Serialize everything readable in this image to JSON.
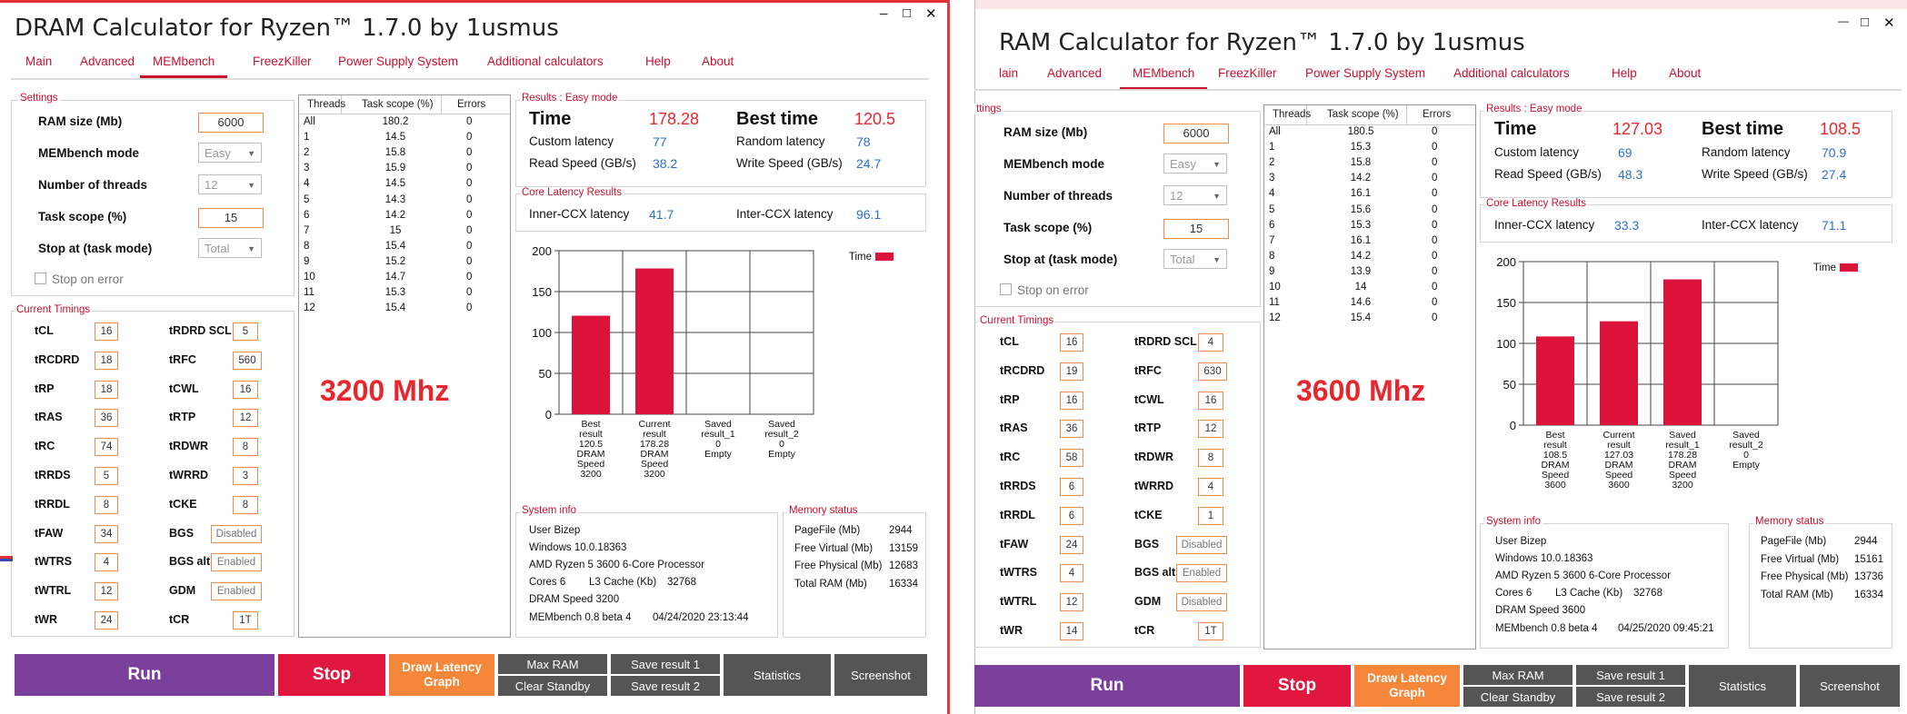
{
  "windows": [
    {
      "title": "DRAM Calculator for Ryzen™ 1.7.0 by 1usmus",
      "controls": {
        "minimize": "_",
        "maximize": "□",
        "close": "✕"
      },
      "tabs": [
        "Main",
        "Advanced",
        "MEMbench",
        "FreezKiller",
        "Power Supply System",
        "Additional calculators",
        "Help",
        "About"
      ],
      "active_tab": "MEMbench",
      "settings": {
        "label": "Settings",
        "ram_size_label": "RAM size (Mb)",
        "ram_size": "6000",
        "mode_label": "MEMbench mode",
        "mode": "Easy",
        "threads_label": "Number of threads",
        "threads": "12",
        "scope_label": "Task scope (%)",
        "scope": "15",
        "stop_label": "Stop at (task mode)",
        "stop": "Total",
        "stop_on_error": "Stop on error"
      },
      "timings_label": "Current Timings",
      "timings_left": [
        [
          "tCL",
          "16"
        ],
        [
          "tRCDRD",
          "18"
        ],
        [
          "tRP",
          "18"
        ],
        [
          "tRAS",
          "36"
        ],
        [
          "tRC",
          "74"
        ],
        [
          "tRRDS",
          "5"
        ],
        [
          "tRRDL",
          "8"
        ],
        [
          "tFAW",
          "34"
        ],
        [
          "tWTRS",
          "4"
        ],
        [
          "tWTRL",
          "12"
        ],
        [
          "tWR",
          "24"
        ]
      ],
      "timings_right": [
        [
          "tRDRD SCL",
          "5"
        ],
        [
          "tRFC",
          "560"
        ],
        [
          "tCWL",
          "16"
        ],
        [
          "tRTP",
          "12"
        ],
        [
          "tRDWR",
          "8"
        ],
        [
          "tWRRD",
          "3"
        ],
        [
          "tCKE",
          "8"
        ],
        [
          "BGS",
          "Disabled"
        ],
        [
          "BGS alt",
          "Enabled"
        ],
        [
          "GDM",
          "Enabled"
        ],
        [
          "tCR",
          "1T"
        ]
      ],
      "thread_table": {
        "headers": [
          "Threads",
          "Task scope (%)",
          "Errors"
        ],
        "rows": [
          [
            "All",
            "180.2",
            "0"
          ],
          [
            "1",
            "14.5",
            "0"
          ],
          [
            "2",
            "15.8",
            "0"
          ],
          [
            "3",
            "15.9",
            "0"
          ],
          [
            "4",
            "14.5",
            "0"
          ],
          [
            "5",
            "14.3",
            "0"
          ],
          [
            "6",
            "14.2",
            "0"
          ],
          [
            "7",
            "15",
            "0"
          ],
          [
            "8",
            "15.4",
            "0"
          ],
          [
            "9",
            "15.2",
            "0"
          ],
          [
            "10",
            "14.7",
            "0"
          ],
          [
            "11",
            "15.3",
            "0"
          ],
          [
            "12",
            "15.4",
            "0"
          ]
        ]
      },
      "freq_label": "3200 Mhz",
      "results": {
        "label": "Results : Easy mode",
        "time_label": "Time",
        "time": "178.28",
        "best_label": "Best time",
        "best": "120.5",
        "custom_label": "Custom latency",
        "custom": "77",
        "random_label": "Random latency",
        "random": "78",
        "read_label": "Read Speed (GB/s)",
        "read": "38.2",
        "write_label": "Write Speed (GB/s)",
        "write": "24.7"
      },
      "core_latency": {
        "label": "Core Latency Results",
        "inner_label": "Inner-CCX latency",
        "inner": "41.7",
        "inter_label": "Inter-CCX latency",
        "inter": "96.1"
      },
      "chart_data": {
        "type": "bar",
        "categories": [
          "Best result 120.5 DRAM Speed 3200",
          "Current result 178.28 DRAM Speed 3200",
          "Saved result_1 0 Empty",
          "Saved result_2 0 Empty"
        ],
        "category_lines": [
          [
            "Best",
            "result",
            "120.5",
            "DRAM",
            "Speed",
            "3200"
          ],
          [
            "Current",
            "result",
            "178.28",
            "DRAM",
            "Speed",
            "3200"
          ],
          [
            "Saved",
            "result_1",
            "0",
            "Empty"
          ],
          [
            "Saved",
            "result_2",
            "0",
            "Empty"
          ]
        ],
        "values": [
          120.5,
          178.28,
          0,
          0
        ],
        "series": [
          {
            "name": "Time",
            "values": [
              120.5,
              178.28,
              0,
              0
            ]
          }
        ],
        "ylim": [
          0,
          200
        ],
        "yticks": [
          "0",
          "50",
          "100",
          "150",
          "200"
        ],
        "legend_position": "top-right",
        "bar_color": "#dc143c",
        "grid": true
      },
      "system_info": {
        "label": "System info",
        "user": "User Bizep",
        "os": "Windows 10.0.18363",
        "cpu": "AMD Ryzen 5 3600 6-Core Processor",
        "cores": "Cores 6",
        "l3_label": "L3 Cache (Kb)",
        "l3": "32768",
        "dram": "DRAM Speed 3200",
        "membench": "MEMbench 0.8 beta 4",
        "date": "04/24/2020 23:13:44"
      },
      "memory_status": {
        "label": "Memory status",
        "rows": [
          [
            "PageFile (Mb)",
            "2944"
          ],
          [
            "Free Virtual (Mb)",
            "13159"
          ],
          [
            "Free Physical (Mb)",
            "12683"
          ],
          [
            "Total RAM (Mb)",
            "16334"
          ]
        ]
      },
      "buttons": {
        "run": "Run",
        "stop": "Stop",
        "draw": "Draw Latency Graph",
        "max_ram": "Max RAM",
        "clear_standby": "Clear Standby",
        "save1": "Save result 1",
        "save2": "Save result 2",
        "statistics": "Statistics",
        "screenshot": "Screenshot"
      }
    },
    {
      "title": "RAM Calculator for Ryzen™ 1.7.0 by 1usmus",
      "controls": {
        "minimize": "—",
        "maximize": "□",
        "close": "✕"
      },
      "tabs": [
        "lain",
        "Advanced",
        "MEMbench",
        "FreezKiller",
        "Power Supply System",
        "Additional calculators",
        "Help",
        "About"
      ],
      "active_tab": "MEMbench",
      "settings": {
        "label": "ttings",
        "ram_size_label": "RAM size (Mb)",
        "ram_size": "6000",
        "mode_label": "MEMbench mode",
        "mode": "Easy",
        "threads_label": "Number of threads",
        "threads": "12",
        "scope_label": "Task scope (%)",
        "scope": "15",
        "stop_label": "Stop at (task mode)",
        "stop": "Total",
        "stop_on_error": "Stop on error"
      },
      "timings_label": "Current Timings",
      "timings_left": [
        [
          "tCL",
          "16"
        ],
        [
          "tRCDRD",
          "19"
        ],
        [
          "tRP",
          "16"
        ],
        [
          "tRAS",
          "36"
        ],
        [
          "tRC",
          "58"
        ],
        [
          "tRRDS",
          "6"
        ],
        [
          "tRRDL",
          "6"
        ],
        [
          "tFAW",
          "24"
        ],
        [
          "tWTRS",
          "4"
        ],
        [
          "tWTRL",
          "12"
        ],
        [
          "tWR",
          "14"
        ]
      ],
      "timings_right": [
        [
          "tRDRD SCL",
          "4"
        ],
        [
          "tRFC",
          "630"
        ],
        [
          "tCWL",
          "16"
        ],
        [
          "tRTP",
          "12"
        ],
        [
          "tRDWR",
          "8"
        ],
        [
          "tWRRD",
          "4"
        ],
        [
          "tCKE",
          "1"
        ],
        [
          "BGS",
          "Disabled"
        ],
        [
          "BGS alt",
          "Enabled"
        ],
        [
          "GDM",
          "Disabled"
        ],
        [
          "tCR",
          "1T"
        ]
      ],
      "thread_table": {
        "headers": [
          "Threads",
          "Task scope (%)",
          "Errors"
        ],
        "rows": [
          [
            "All",
            "180.5",
            "0"
          ],
          [
            "1",
            "15.3",
            "0"
          ],
          [
            "2",
            "15.8",
            "0"
          ],
          [
            "3",
            "14.2",
            "0"
          ],
          [
            "4",
            "16.1",
            "0"
          ],
          [
            "5",
            "15.6",
            "0"
          ],
          [
            "6",
            "15.3",
            "0"
          ],
          [
            "7",
            "16.1",
            "0"
          ],
          [
            "8",
            "14.2",
            "0"
          ],
          [
            "9",
            "13.9",
            "0"
          ],
          [
            "10",
            "14",
            "0"
          ],
          [
            "11",
            "14.6",
            "0"
          ],
          [
            "12",
            "15.4",
            "0"
          ]
        ]
      },
      "freq_label": "3600 Mhz",
      "results": {
        "label": "Results : Easy mode",
        "time_label": "Time",
        "time": "127.03",
        "best_label": "Best time",
        "best": "108.5",
        "custom_label": "Custom latency",
        "custom": "69",
        "random_label": "Random latency",
        "random": "70.9",
        "read_label": "Read Speed (GB/s)",
        "read": "48.3",
        "write_label": "Write Speed (GB/s)",
        "write": "27.4"
      },
      "core_latency": {
        "label": "Core Latency Results",
        "inner_label": "Inner-CCX latency",
        "inner": "33.3",
        "inter_label": "Inter-CCX latency",
        "inter": "71.1"
      },
      "chart_data": {
        "type": "bar",
        "categories": [
          "Best result 108.5 DRAM Speed 3600",
          "Current result 127.03 DRAM Speed 3600",
          "Saved result_1 178.28 DRAM Speed 3200",
          "Saved result_2 0 Empty"
        ],
        "category_lines": [
          [
            "Best",
            "result",
            "108.5",
            "DRAM",
            "Speed",
            "3600"
          ],
          [
            "Current",
            "result",
            "127.03",
            "DRAM",
            "Speed",
            "3600"
          ],
          [
            "Saved",
            "result_1",
            "178.28",
            "DRAM",
            "Speed",
            "3200"
          ],
          [
            "Saved",
            "result_2",
            "0",
            "Empty"
          ]
        ],
        "values": [
          108.5,
          127.03,
          178.28,
          0
        ],
        "series": [
          {
            "name": "Time",
            "values": [
              108.5,
              127.03,
              178.28,
              0
            ]
          }
        ],
        "ylim": [
          0,
          200
        ],
        "yticks": [
          "0",
          "50",
          "100",
          "150",
          "200"
        ],
        "legend_position": "top-right",
        "bar_color": "#dc143c",
        "grid": true
      },
      "system_info": {
        "label": "System info",
        "user": "User Bizep",
        "os": "Windows 10.0.18363",
        "cpu": "AMD Ryzen 5 3600 6-Core Processor",
        "cores": "Cores 6",
        "l3_label": "L3 Cache (Kb)",
        "l3": "32768",
        "dram": "DRAM Speed 3600",
        "membench": "MEMbench 0.8 beta 4",
        "date": "04/25/2020 09:45:21"
      },
      "memory_status": {
        "label": "Memory status",
        "rows": [
          [
            "PageFile (Mb)",
            "2944"
          ],
          [
            "Free Virtual (Mb)",
            "15161"
          ],
          [
            "Free Physical (Mb)",
            "13736"
          ],
          [
            "Total RAM (Mb)",
            "16334"
          ]
        ]
      },
      "buttons": {
        "run": "Run",
        "stop": "Stop",
        "draw": "Draw Latency Graph",
        "max_ram": "Max RAM",
        "clear_standby": "Clear Standby",
        "save1": "Save result 1",
        "save2": "Save result 2",
        "statistics": "Statistics",
        "screenshot": "Screenshot"
      }
    }
  ]
}
